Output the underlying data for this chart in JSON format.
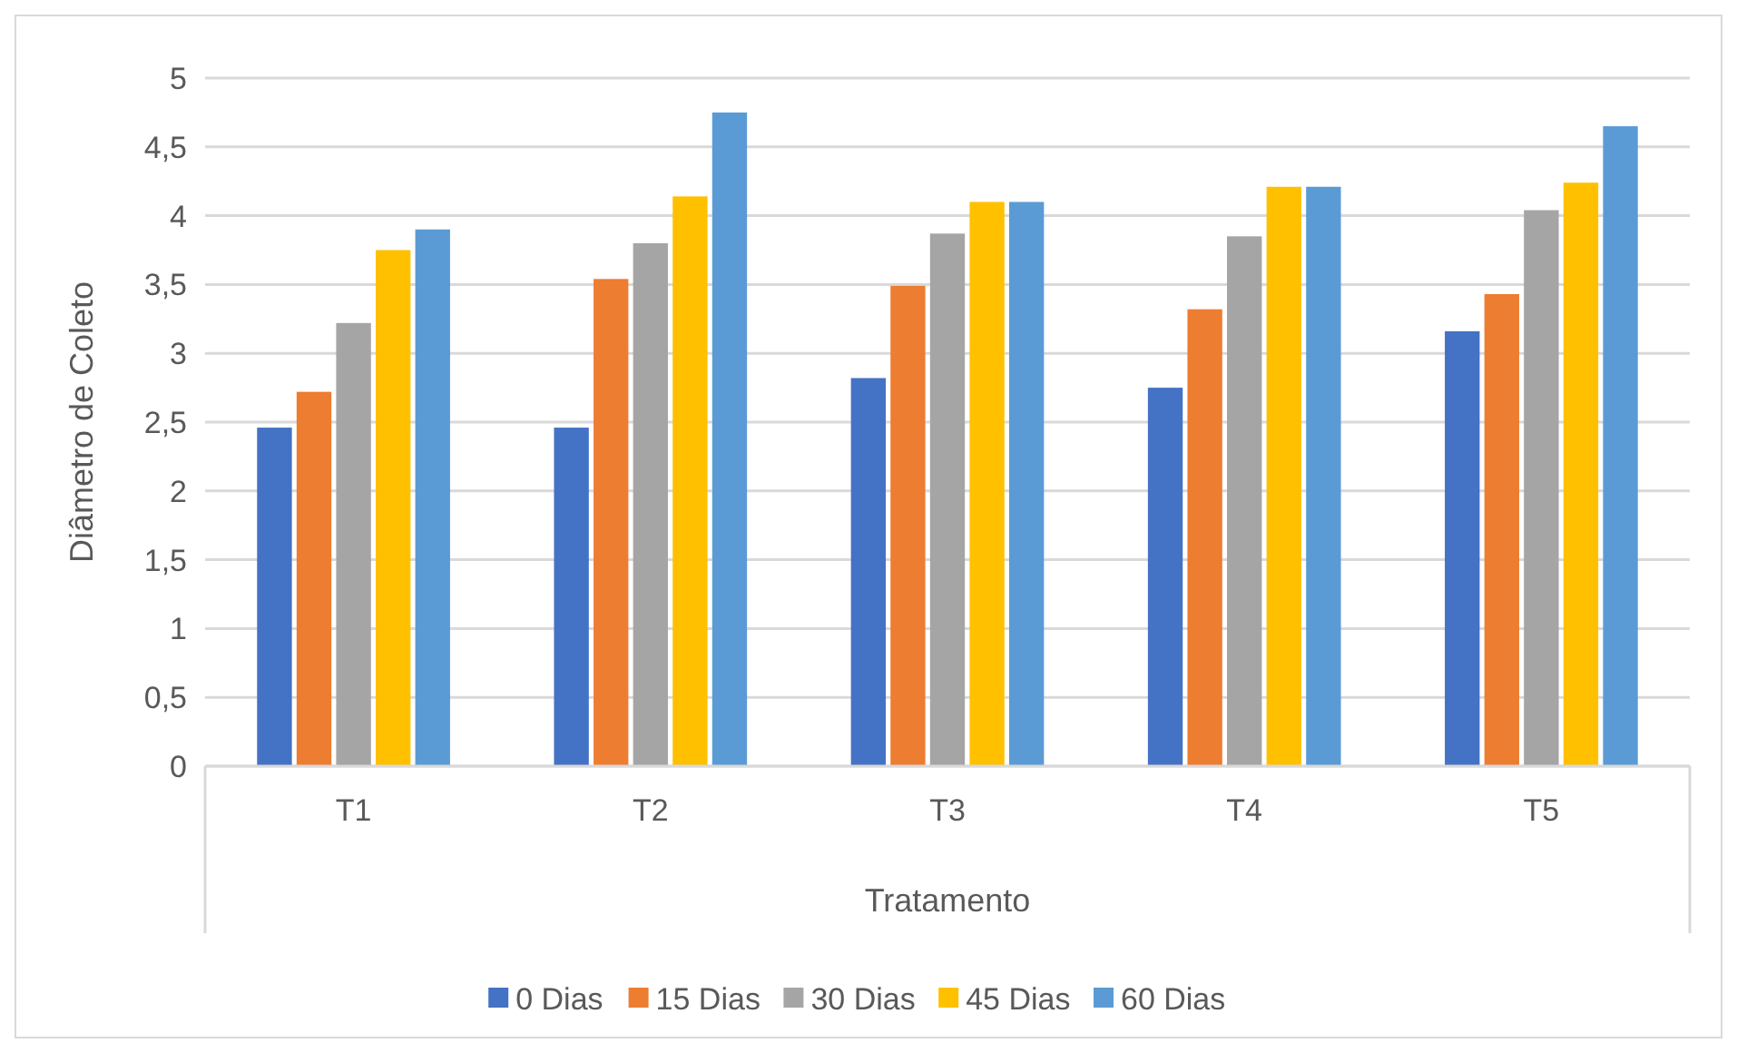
{
  "chart_data": {
    "type": "bar",
    "xlabel": "Tratamento",
    "ylabel": "Diâmetro de Coleto",
    "categories": [
      "T1",
      "T2",
      "T3",
      "T4",
      "T5"
    ],
    "series": [
      {
        "name": "0 Dias",
        "color": "#4472c4",
        "values": [
          2.46,
          2.46,
          2.82,
          2.75,
          3.16
        ]
      },
      {
        "name": "15 Dias",
        "color": "#ed7d31",
        "values": [
          2.72,
          3.54,
          3.49,
          3.32,
          3.43
        ]
      },
      {
        "name": "30 Dias",
        "color": "#a5a5a5",
        "values": [
          3.22,
          3.8,
          3.87,
          3.85,
          4.04
        ]
      },
      {
        "name": "45 Dias",
        "color": "#ffc000",
        "values": [
          3.75,
          4.14,
          4.1,
          4.21,
          4.24
        ]
      },
      {
        "name": "60 Dias",
        "color": "#5b9bd5",
        "values": [
          3.9,
          4.75,
          4.1,
          4.21,
          4.65
        ]
      }
    ],
    "ylim": [
      0,
      5
    ],
    "yticks": [
      0,
      {
        "value": 0.5,
        "label": "0,5"
      },
      1,
      {
        "value": 1.5,
        "label": "1,5"
      },
      2,
      {
        "value": 2.5,
        "label": "2,5"
      },
      3,
      {
        "value": 3.5,
        "label": "3,5"
      },
      4,
      {
        "value": 4.5,
        "label": "4,5"
      },
      5
    ],
    "grid": "y",
    "legend": "bottom"
  }
}
